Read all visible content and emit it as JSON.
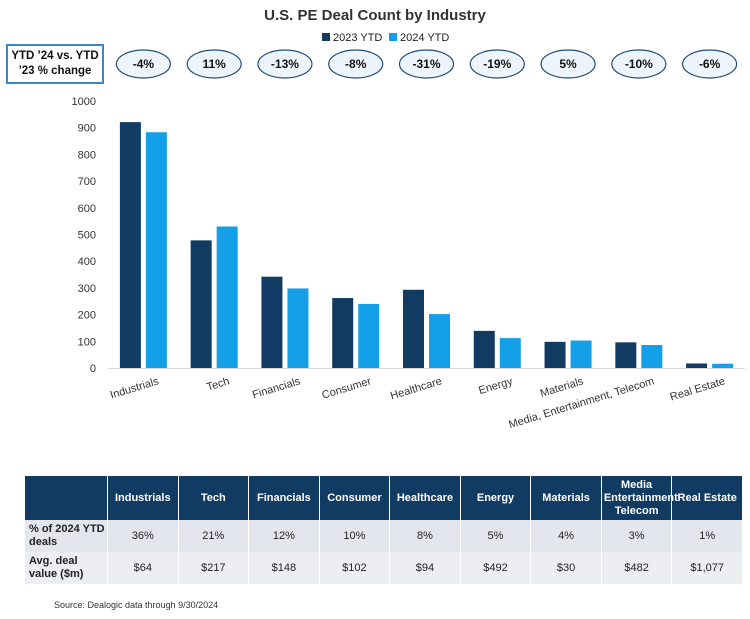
{
  "chart_data": {
    "type": "bar",
    "title": "U.S. PE Deal Count by Industry",
    "categories": [
      "Industrials",
      "Tech",
      "Financials",
      "Consumer",
      "Healthcare",
      "Energy",
      "Materials",
      "Media, Entertainment, Telecom",
      "Real Estate"
    ],
    "series": [
      {
        "name": "2023 YTD",
        "color": "#123b63",
        "values": [
          921,
          478,
          342,
          262,
          293,
          139,
          98,
          96,
          17
        ]
      },
      {
        "name": "2024 YTD",
        "color": "#13a0e8",
        "values": [
          883,
          530,
          298,
          240,
          202,
          112,
          103,
          86,
          16
        ]
      }
    ],
    "ylim": [
      0,
      1000
    ],
    "yticks": [
      0,
      100,
      200,
      300,
      400,
      500,
      600,
      700,
      800,
      900,
      1000
    ],
    "xlabel": "",
    "ylabel": "",
    "legend_position": "top-center",
    "grid": false,
    "pct_change_label": "YTD ’24 vs. YTD ’23  % change",
    "pct_change": [
      "-4%",
      "11%",
      "-13%",
      "-8%",
      "-31%",
      "-19%",
      "5%",
      "-10%",
      "-6%"
    ]
  },
  "table": {
    "headers": [
      "Industrials",
      "Tech",
      "Financials",
      "Consumer",
      "Healthcare",
      "Energy",
      "Materials",
      "Media Entertainment Telecom",
      "Real Estate"
    ],
    "rows": [
      {
        "label": "% of 2024 YTD deals",
        "values": [
          "36%",
          "21%",
          "12%",
          "10%",
          "8%",
          "5%",
          "4%",
          "3%",
          "1%"
        ]
      },
      {
        "label": "Avg. deal value ($m)",
        "values": [
          "$64",
          "$217",
          "$148",
          "$102",
          "$94",
          "$492",
          "$30",
          "$482",
          "$1,077"
        ]
      }
    ]
  },
  "source": "Source: Dealogic data through 9/30/2024"
}
